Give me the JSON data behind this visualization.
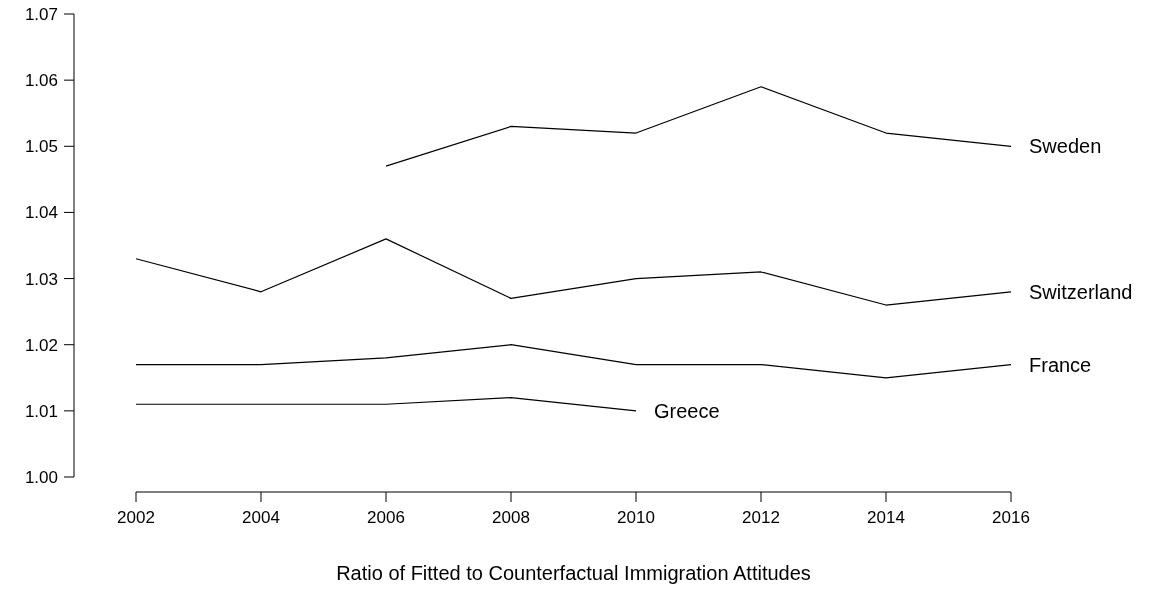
{
  "chart_data": {
    "type": "line",
    "xlabel": "Ratio of Fitted to Counterfactual Immigration Attitudes",
    "x": [
      2002,
      2004,
      2006,
      2008,
      2010,
      2012,
      2014,
      2016
    ],
    "xlim": [
      2002,
      2016
    ],
    "xticks": [
      2002,
      2004,
      2006,
      2008,
      2010,
      2012,
      2014,
      2016
    ],
    "ylim": [
      1.0,
      1.07
    ],
    "yticks": [
      {
        "value": 1.0,
        "label": "1.00"
      },
      {
        "value": 1.01,
        "label": "1.01"
      },
      {
        "value": 1.02,
        "label": "1.02"
      },
      {
        "value": 1.03,
        "label": "1.03"
      },
      {
        "value": 1.04,
        "label": "1.04"
      },
      {
        "value": 1.05,
        "label": "1.05"
      },
      {
        "value": 1.06,
        "label": "1.06"
      },
      {
        "value": 1.07,
        "label": "1.07"
      }
    ],
    "grid": false,
    "marker": "none",
    "line_style": "solid",
    "series": [
      {
        "name": "Sweden",
        "color": "#000000",
        "values": [
          null,
          null,
          1.047,
          1.053,
          1.052,
          1.059,
          1.052,
          1.05
        ]
      },
      {
        "name": "Switzerland",
        "color": "#000000",
        "values": [
          1.033,
          1.028,
          1.036,
          1.027,
          1.03,
          1.031,
          1.026,
          1.028
        ]
      },
      {
        "name": "France",
        "color": "#000000",
        "values": [
          1.017,
          1.017,
          1.018,
          1.02,
          1.017,
          1.017,
          1.015,
          1.017
        ]
      },
      {
        "name": "Greece",
        "color": "#000000",
        "values": [
          1.011,
          1.011,
          1.011,
          1.012,
          1.01,
          null,
          null,
          null
        ]
      }
    ]
  }
}
